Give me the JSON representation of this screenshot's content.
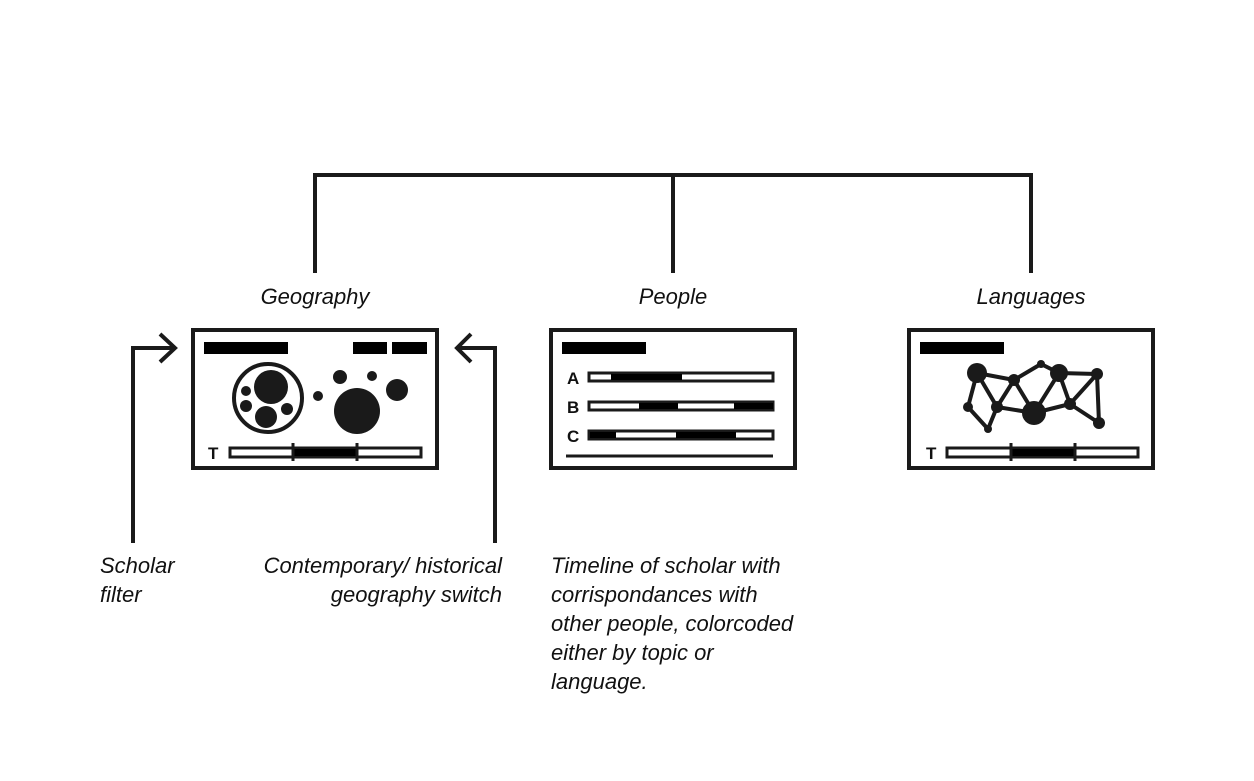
{
  "colors": {
    "ink": "#1a1a1a",
    "background": "#ffffff"
  },
  "panels": {
    "geography": {
      "title": "Geography",
      "timeline_letter": "T"
    },
    "people": {
      "title": "People",
      "row_letters": [
        "A",
        "B",
        "C"
      ]
    },
    "languages": {
      "title": "Languages",
      "timeline_letter": "T"
    }
  },
  "annotations": {
    "scholar_filter": [
      "Scholar",
      "filter"
    ],
    "geo_switch": [
      "Contemporary/ historical",
      "geography switch"
    ],
    "people_desc": [
      "Timeline of scholar with",
      "corrispondances with",
      "other people, colorcoded",
      "either by topic or",
      "language."
    ]
  }
}
